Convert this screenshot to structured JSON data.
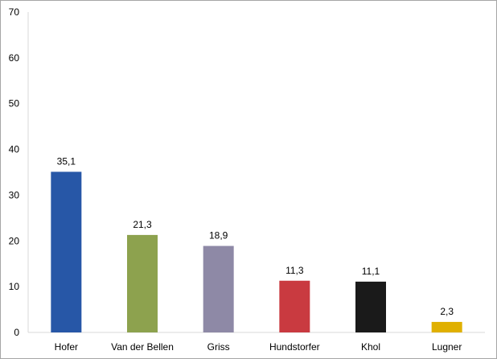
{
  "chart_data": {
    "type": "bar",
    "title": "",
    "xlabel": "",
    "ylabel": "",
    "categories": [
      "Hofer",
      "Van der Bellen",
      "Griss",
      "Hundstorfer",
      "Khol",
      "Lugner"
    ],
    "values": [
      35.1,
      21.3,
      18.9,
      11.3,
      11.1,
      2.3
    ],
    "data_labels": [
      "35,1",
      "21,3",
      "18,9",
      "11,3",
      "11,1",
      "2,3"
    ],
    "colors": [
      "#2757a7",
      "#8da24e",
      "#8e89a6",
      "#c93a40",
      "#1a1a1a",
      "#e0b000"
    ],
    "ylim": [
      0,
      70
    ],
    "yticks": [
      0,
      10,
      20,
      30,
      40,
      50,
      60,
      70
    ],
    "grid": false,
    "legend": "none"
  }
}
